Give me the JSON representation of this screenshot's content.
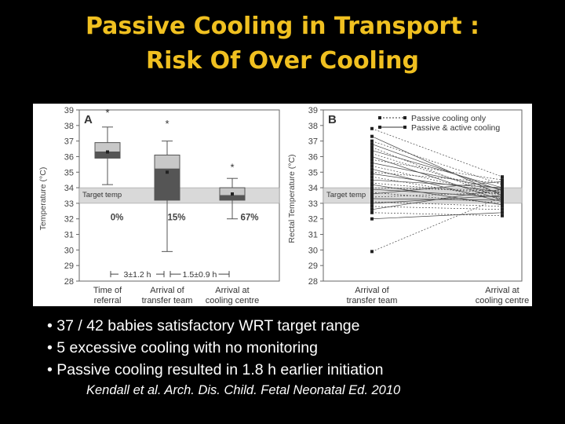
{
  "slide": {
    "title_line1": "Passive Cooling in Transport :",
    "title_line2": "Risk Of Over Cooling",
    "bullets": [
      "• 37 / 42 babies satisfactory WRT target range",
      "• 5 excessive cooling with no monitoring",
      "• Passive cooling resulted in 1.8 h earlier initiation"
    ],
    "citation": "Kendall et al. Arch. Dis. Child. Fetal Neonatal Ed. 2010"
  },
  "colors": {
    "title": "#f0c020",
    "background": "#000000",
    "box_fill": "#c8c8c8",
    "box_fill_dark": "#555555",
    "target_band": "#d9d9d9"
  },
  "chart_data": [
    {
      "type": "box",
      "panel_label": "A",
      "ylabel": "Temperature (°C)",
      "ylim": [
        28,
        39
      ],
      "yticks": [
        39,
        38,
        37,
        36,
        35,
        34,
        33,
        32,
        31,
        30,
        29,
        28
      ],
      "target_band": [
        33,
        34
      ],
      "target_label": "Target temp",
      "categories": [
        "Time of referral",
        "Arrival of transfer team",
        "Arrival at cooling centre"
      ],
      "boxes": [
        {
          "whisker_low": 34.2,
          "q1": 35.9,
          "median": 36.3,
          "q3": 36.9,
          "whisker_high": 37.9,
          "mean": 36.3,
          "outlier": 38.8,
          "percent": "0%"
        },
        {
          "whisker_low": 29.9,
          "q1": 33.2,
          "median": 35.2,
          "q3": 36.1,
          "whisker_high": 37.0,
          "mean": 35.0,
          "outlier": 38.1,
          "percent": "15%"
        },
        {
          "whisker_low": 32.0,
          "q1": 33.2,
          "median": 33.5,
          "q3": 34.0,
          "whisker_high": 34.6,
          "mean": 33.6,
          "outlier": 35.3,
          "percent": "67%"
        }
      ],
      "intervals": [
        "3±1.2 h",
        "1.5±0.9 h"
      ]
    },
    {
      "type": "line",
      "panel_label": "B",
      "ylabel": "Rectal Temperature (°C)",
      "ylim": [
        28,
        39
      ],
      "yticks": [
        39,
        38,
        37,
        36,
        35,
        34,
        33,
        32,
        31,
        30,
        29,
        28
      ],
      "target_band": [
        33,
        34
      ],
      "target_label": "Target temp",
      "categories": [
        "Arrival of transfer team",
        "Arrival at cooling centre"
      ],
      "legend": [
        "Passive cooling only",
        "Passive & active cooling"
      ],
      "legend_position": "top-right",
      "pairs": [
        [
          37.8,
          34.7
        ],
        [
          37.3,
          33.5
        ],
        [
          37.0,
          34.2
        ],
        [
          36.8,
          33.8
        ],
        [
          36.6,
          33.3
        ],
        [
          36.4,
          34.0
        ],
        [
          36.2,
          33.6
        ],
        [
          36.0,
          33.2
        ],
        [
          35.8,
          34.5
        ],
        [
          35.6,
          33.9
        ],
        [
          35.4,
          33.5
        ],
        [
          35.2,
          33.1
        ],
        [
          35.0,
          34.3
        ],
        [
          34.9,
          33.7
        ],
        [
          34.7,
          33.3
        ],
        [
          34.5,
          34.0
        ],
        [
          34.3,
          33.6
        ],
        [
          34.2,
          32.9
        ],
        [
          34.0,
          33.8
        ],
        [
          33.9,
          33.4
        ],
        [
          33.7,
          33.0
        ],
        [
          33.6,
          34.4
        ],
        [
          33.4,
          33.7
        ],
        [
          33.3,
          33.2
        ],
        [
          33.1,
          32.8
        ],
        [
          33.0,
          33.5
        ],
        [
          32.8,
          32.6
        ],
        [
          32.6,
          33.9
        ],
        [
          32.4,
          32.2
        ],
        [
          32.0,
          32.4
        ],
        [
          29.9,
          33.4
        ]
      ]
    }
  ]
}
